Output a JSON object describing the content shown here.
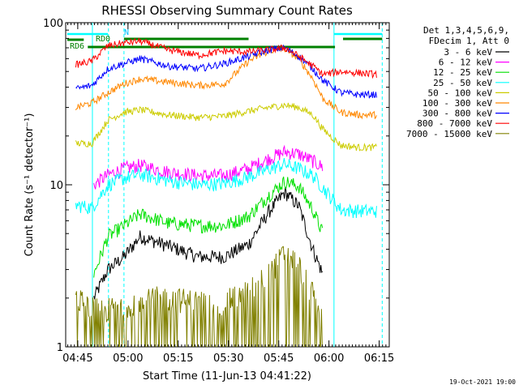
{
  "chart_data": {
    "type": "line",
    "title": "RHESSI Observing Summary Count Rates",
    "xlabel": "Start Time (11-Jun-13 04:41:22)",
    "ylabel": "Count Rate (s⁻¹ detector⁻¹)",
    "yscale": "log",
    "xlim": [
      4.69,
      6.3
    ],
    "ylim": [
      1,
      100
    ],
    "x_ticks": [
      {
        "t": 4.75,
        "label": "04:45"
      },
      {
        "t": 5.0,
        "label": "05:00"
      },
      {
        "t": 5.25,
        "label": "05:15"
      },
      {
        "t": 5.5,
        "label": "05:30"
      },
      {
        "t": 5.75,
        "label": "05:45"
      },
      {
        "t": 6.0,
        "label": "06:00"
      },
      {
        "t": 6.25,
        "label": "06:15"
      }
    ],
    "y_ticks": [
      {
        "v": 1,
        "label": "1"
      },
      {
        "v": 10,
        "label": "10"
      },
      {
        "v": 100,
        "label": "100"
      }
    ],
    "legend_header": [
      "Det 1,3,4,5,6,9,",
      "FDecim 1, Att 0"
    ],
    "legend_position": "right",
    "timestamp": "19-Oct-2021 19:00",
    "flags": {
      "rd0": "RD0",
      "rd6": "RD6",
      "n": "N"
    },
    "series": [
      {
        "name": "3 - 6 keV",
        "color": "#000000",
        "x": [
          4.83,
          4.9,
          4.98,
          5.06,
          5.2,
          5.35,
          5.48,
          5.6,
          5.7,
          5.78,
          5.85,
          5.92,
          5.97
        ],
        "values": [
          2.0,
          3.0,
          3.6,
          4.8,
          4.2,
          3.6,
          3.6,
          4.3,
          6.8,
          9.0,
          7.4,
          4.0,
          2.8
        ]
      },
      {
        "name": "6 - 12 keV",
        "color": "#ff00ff",
        "x": [
          4.83,
          4.9,
          4.98,
          5.06,
          5.2,
          5.35,
          5.48,
          5.6,
          5.7,
          5.78,
          5.85,
          5.92,
          5.97
        ],
        "values": [
          10.0,
          11.5,
          12.6,
          13.2,
          12.0,
          11.4,
          11.4,
          12.6,
          14.5,
          16.0,
          15.5,
          14.0,
          12.8
        ]
      },
      {
        "name": "12 - 25 keV",
        "color": "#00e000",
        "x": [
          4.83,
          4.9,
          4.98,
          5.06,
          5.2,
          5.35,
          5.48,
          5.6,
          5.7,
          5.78,
          5.85,
          5.92,
          5.97
        ],
        "values": [
          2.8,
          4.8,
          5.6,
          6.6,
          5.8,
          5.6,
          5.6,
          6.4,
          8.6,
          10.5,
          9.8,
          7.0,
          5.0
        ]
      },
      {
        "name": "25 - 50 keV",
        "color": "#00ffff",
        "x": [
          4.74,
          4.82,
          4.9,
          4.98,
          5.06,
          5.2,
          5.35,
          5.48,
          5.6,
          5.7,
          5.78,
          5.85,
          5.92,
          5.97,
          6.06,
          6.15,
          6.24
        ],
        "values": [
          7.5,
          7.2,
          10.0,
          11.0,
          11.6,
          10.6,
          10.0,
          10.2,
          11.2,
          12.5,
          13.4,
          12.6,
          11.4,
          9.6,
          7.0,
          6.9,
          6.9
        ]
      },
      {
        "name": "50 - 100 keV",
        "color": "#cccc00",
        "x": [
          4.74,
          4.82,
          4.9,
          4.98,
          5.06,
          5.2,
          5.35,
          5.48,
          5.6,
          5.7,
          5.78,
          5.85,
          5.92,
          5.97,
          6.06,
          6.15,
          6.24
        ],
        "values": [
          18.0,
          18.0,
          25.0,
          28.0,
          29.0,
          27.0,
          26.0,
          26.5,
          28.5,
          30.0,
          31.0,
          30.0,
          27.0,
          22.0,
          17.5,
          17.0,
          17.0
        ]
      },
      {
        "name": "100 - 300 keV",
        "color": "#ff8800",
        "x": [
          4.74,
          4.82,
          4.9,
          4.98,
          5.06,
          5.2,
          5.35,
          5.48,
          5.6,
          5.7,
          5.78,
          5.85,
          5.92,
          5.97,
          6.06,
          6.15,
          6.24
        ],
        "values": [
          30.0,
          32.0,
          37.0,
          42.0,
          45.0,
          43.0,
          41.0,
          42.0,
          58.0,
          67.0,
          69.0,
          60.0,
          45.0,
          34.0,
          28.0,
          27.0,
          27.0
        ]
      },
      {
        "name": "300 - 800 keV",
        "color": "#0000ff",
        "x": [
          4.74,
          4.82,
          4.9,
          4.98,
          5.06,
          5.2,
          5.35,
          5.48,
          5.6,
          5.7,
          5.78,
          5.85,
          5.92,
          5.97,
          6.06,
          6.15,
          6.24
        ],
        "values": [
          39.0,
          41.0,
          52.0,
          56.0,
          60.0,
          54.0,
          52.0,
          56.0,
          62.0,
          68.0,
          70.0,
          62.0,
          52.0,
          44.0,
          37.0,
          36.0,
          36.0
        ]
      },
      {
        "name": "800 - 7000 keV",
        "color": "#ff0000",
        "x": [
          4.74,
          4.82,
          4.9,
          4.98,
          5.06,
          5.2,
          5.35,
          5.48,
          5.6,
          5.7,
          5.78,
          5.85,
          5.92,
          5.97,
          6.06,
          6.15,
          6.24
        ],
        "values": [
          55.0,
          58.0,
          72.0,
          75.0,
          77.0,
          68.0,
          63.0,
          67.0,
          66.0,
          68.0,
          70.0,
          62.0,
          54.0,
          48.0,
          50.0,
          49.0,
          48.0
        ]
      },
      {
        "name": "7000 - 15000 keV",
        "color": "#808000",
        "x": [
          4.74,
          4.83,
          4.9,
          4.98,
          5.06,
          5.2,
          5.35,
          5.48,
          5.6,
          5.7,
          5.78,
          5.85,
          5.92,
          5.97
        ],
        "values": [
          2.0,
          1.7,
          1.7,
          1.8,
          2.0,
          2.0,
          1.9,
          1.9,
          2.2,
          2.8,
          3.8,
          3.2,
          2.1,
          1.4
        ]
      }
    ]
  }
}
